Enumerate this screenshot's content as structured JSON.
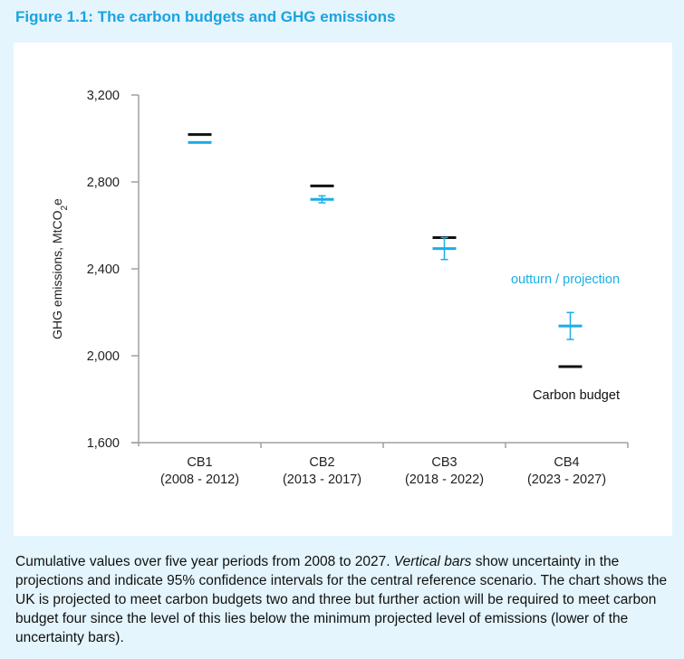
{
  "figure_title": "Figure 1.1: The carbon budgets and GHG emissions",
  "caption": {
    "part1": "Cumulative values over five year periods from 2008 to 2027. ",
    "italic": "Vertical bars",
    "part2": " show uncertainty in the projections and indicate 95% confidence intervals for the central reference scenario. The chart shows the UK is projected to meet carbon budgets two and three but further action will be required to meet carbon budget four since the level of this lies below the minimum projected level of emissions (lower of the uncertainty bars)."
  },
  "colors": {
    "projection": "#1aaee6",
    "budget": "#111111",
    "axis": "#a0a0a0",
    "title": "#1aa3e0",
    "background": "#e4f5fd"
  },
  "chart_data": {
    "type": "errorbar",
    "title": "Figure 1.1: The carbon budgets and GHG emissions",
    "xlabel": "",
    "ylabel": "GHG emissions, MtCO2e",
    "ylabel_main": "GHG emissions, MtCO",
    "ylabel_sub": "2",
    "ylabel_tail": "e",
    "ylim": [
      1600,
      3200
    ],
    "yticks": [
      1600,
      2000,
      2400,
      2800,
      3200
    ],
    "ytick_labels": [
      "1,600",
      "2,000",
      "2,400",
      "2,800",
      "3,200"
    ],
    "grid": false,
    "categories": [
      "CB1",
      "CB2",
      "CB3",
      "CB4"
    ],
    "category_periods": [
      "(2008 - 2012)",
      "(2013 - 2017)",
      "(2018 - 2022)",
      "(2023 - 2027)"
    ],
    "series": [
      {
        "name": "Carbon budget",
        "values": [
          3018,
          2782,
          2544,
          1950
        ]
      },
      {
        "name": "outturn / projection",
        "values": [
          2982,
          2720,
          2493,
          2137
        ],
        "lower": [
          2982,
          2704,
          2443,
          2075
        ],
        "upper": [
          2982,
          2736,
          2544,
          2199
        ]
      }
    ],
    "annotations": {
      "projection_label": "outturn / projection",
      "budget_label": "Carbon budget"
    }
  }
}
